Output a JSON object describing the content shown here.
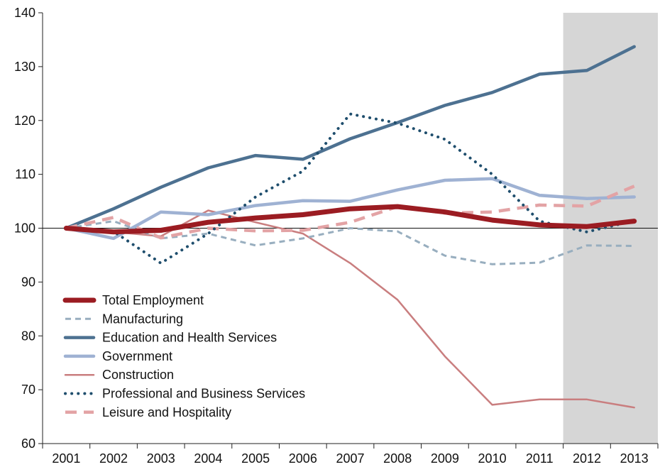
{
  "chart_data": {
    "type": "line",
    "title": "",
    "xlabel": "",
    "ylabel": "",
    "categories": [
      "2001",
      "2002",
      "2003",
      "2004",
      "2005",
      "2006",
      "2007",
      "2008",
      "2009",
      "2010",
      "2011",
      "2012",
      "2013"
    ],
    "ylim": [
      60,
      140
    ],
    "yticks": [
      60,
      70,
      80,
      90,
      100,
      110,
      120,
      130,
      140
    ],
    "reference_line": 100,
    "shaded_region": {
      "from": "2011",
      "to": "2013",
      "color": "#d6d6d6"
    },
    "grid": false,
    "legend_position": "lower-left",
    "series": [
      {
        "name": "Total Employment",
        "color": "#9b1c22",
        "style": "solid-thick",
        "values": [
          100,
          99.3,
          99.6,
          101.1,
          101.9,
          102.5,
          103.6,
          104.0,
          103.0,
          101.5,
          100.6,
          100.3,
          101.3
        ]
      },
      {
        "name": "Manufacturing",
        "color": "#98aebf",
        "style": "short-dash",
        "values": [
          100,
          101.3,
          98.1,
          99.0,
          96.8,
          98.1,
          100.0,
          99.4,
          94.9,
          93.3,
          93.6,
          96.8,
          96.7
        ]
      },
      {
        "name": "Education and Health Services",
        "color": "#4d7191",
        "style": "solid",
        "values": [
          100,
          103.6,
          107.6,
          111.2,
          113.5,
          112.8,
          116.6,
          119.6,
          122.8,
          125.2,
          128.6,
          129.3,
          133.7
        ]
      },
      {
        "name": "Government",
        "color": "#9fb2d3",
        "style": "solid",
        "values": [
          100,
          98.1,
          103.0,
          102.5,
          104.2,
          105.1,
          105.0,
          107.1,
          108.9,
          109.2,
          106.1,
          105.5,
          105.8
        ]
      },
      {
        "name": "Construction",
        "color": "#c97e7f",
        "style": "solid-thin",
        "values": [
          100,
          99.3,
          98.5,
          103.3,
          101.1,
          99.0,
          93.5,
          86.7,
          76.2,
          67.2,
          68.2,
          68.2,
          66.7
        ]
      },
      {
        "name": "Professional and Business Services",
        "color": "#1f4e6d",
        "style": "dotted",
        "values": [
          100,
          99.4,
          93.5,
          99.0,
          105.8,
          110.6,
          121.2,
          119.5,
          116.5,
          110.0,
          101.3,
          99.3,
          101.4
        ]
      },
      {
        "name": "Leisure and Hospitality",
        "color": "#e3a3a5",
        "style": "long-dash",
        "values": [
          100,
          102.0,
          98.2,
          100.0,
          99.5,
          99.6,
          101.1,
          104.0,
          102.8,
          103.0,
          104.3,
          104.1,
          107.8
        ]
      }
    ]
  }
}
